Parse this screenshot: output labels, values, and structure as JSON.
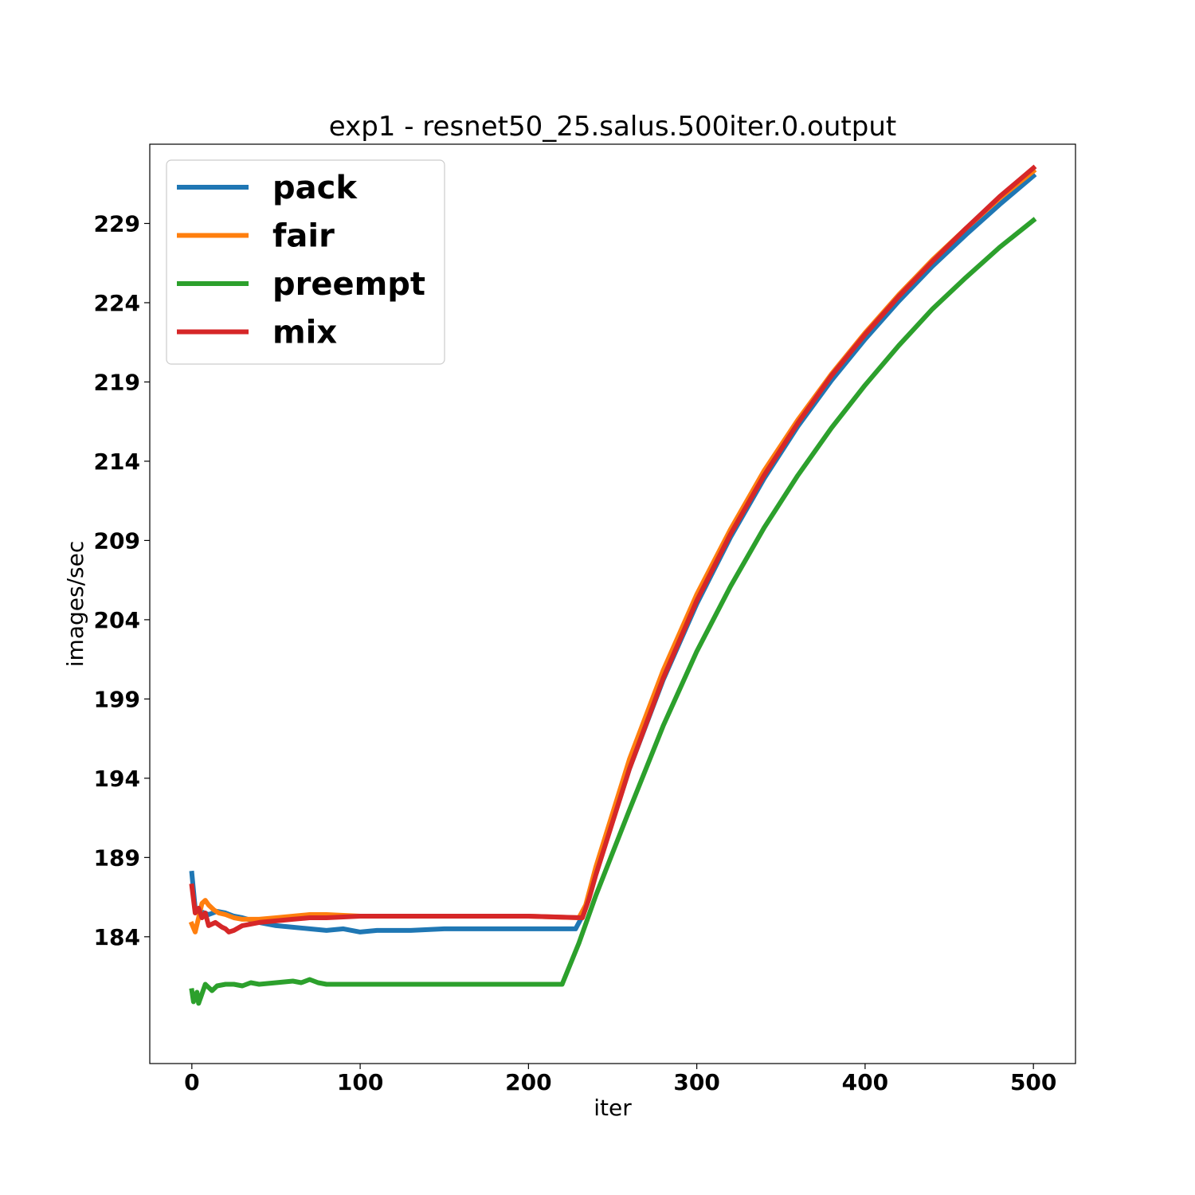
{
  "chart_data": {
    "type": "line",
    "title": "exp1 - resnet50_25.salus.500iter.0.output",
    "xlabel": "iter",
    "ylabel": "images/sec",
    "xlim": [
      -25,
      525
    ],
    "ylim": [
      176,
      234
    ],
    "xticks": [
      0,
      100,
      200,
      300,
      400,
      500
    ],
    "yticks": [
      184,
      189,
      194,
      199,
      204,
      209,
      214,
      219,
      224,
      229
    ],
    "legend_position": "upper left",
    "grid": false,
    "series": [
      {
        "name": "pack",
        "color": "#1f77b4",
        "points": [
          [
            0,
            188.0
          ],
          [
            2,
            185.8
          ],
          [
            5,
            185.6
          ],
          [
            10,
            185.4
          ],
          [
            15,
            185.6
          ],
          [
            20,
            185.5
          ],
          [
            25,
            185.3
          ],
          [
            30,
            185.2
          ],
          [
            40,
            184.9
          ],
          [
            50,
            184.7
          ],
          [
            60,
            184.6
          ],
          [
            70,
            184.5
          ],
          [
            80,
            184.4
          ],
          [
            90,
            184.5
          ],
          [
            100,
            184.3
          ],
          [
            110,
            184.4
          ],
          [
            130,
            184.4
          ],
          [
            150,
            184.5
          ],
          [
            180,
            184.5
          ],
          [
            200,
            184.5
          ],
          [
            228,
            184.5
          ],
          [
            232,
            185.3
          ],
          [
            240,
            188.0
          ],
          [
            260,
            194.6
          ],
          [
            280,
            200.2
          ],
          [
            300,
            205.0
          ],
          [
            320,
            209.2
          ],
          [
            340,
            212.9
          ],
          [
            360,
            216.2
          ],
          [
            380,
            219.1
          ],
          [
            400,
            221.7
          ],
          [
            420,
            224.1
          ],
          [
            440,
            226.3
          ],
          [
            460,
            228.3
          ],
          [
            480,
            230.2
          ],
          [
            500,
            232.0
          ]
        ]
      },
      {
        "name": "fair",
        "color": "#ff7f0e",
        "points": [
          [
            0,
            184.8
          ],
          [
            2,
            184.3
          ],
          [
            4,
            185.2
          ],
          [
            6,
            186.1
          ],
          [
            8,
            186.3
          ],
          [
            10,
            186.0
          ],
          [
            13,
            185.7
          ],
          [
            16,
            185.5
          ],
          [
            20,
            185.4
          ],
          [
            25,
            185.2
          ],
          [
            30,
            185.1
          ],
          [
            40,
            185.1
          ],
          [
            50,
            185.2
          ],
          [
            60,
            185.3
          ],
          [
            70,
            185.4
          ],
          [
            80,
            185.4
          ],
          [
            100,
            185.3
          ],
          [
            130,
            185.3
          ],
          [
            160,
            185.3
          ],
          [
            200,
            185.3
          ],
          [
            230,
            185.2
          ],
          [
            234,
            186.0
          ],
          [
            240,
            188.4
          ],
          [
            260,
            195.2
          ],
          [
            280,
            200.8
          ],
          [
            300,
            205.6
          ],
          [
            320,
            209.7
          ],
          [
            340,
            213.4
          ],
          [
            360,
            216.6
          ],
          [
            380,
            219.5
          ],
          [
            400,
            222.1
          ],
          [
            420,
            224.5
          ],
          [
            440,
            226.7
          ],
          [
            460,
            228.7
          ],
          [
            480,
            230.6
          ],
          [
            500,
            232.3
          ]
        ]
      },
      {
        "name": "preempt",
        "color": "#2ca02c",
        "points": [
          [
            0,
            180.6
          ],
          [
            1,
            179.9
          ],
          [
            3,
            180.5
          ],
          [
            4,
            179.8
          ],
          [
            6,
            180.4
          ],
          [
            8,
            181.0
          ],
          [
            10,
            180.8
          ],
          [
            12,
            180.6
          ],
          [
            15,
            180.9
          ],
          [
            20,
            181.0
          ],
          [
            25,
            181.0
          ],
          [
            30,
            180.9
          ],
          [
            35,
            181.1
          ],
          [
            40,
            181.0
          ],
          [
            50,
            181.1
          ],
          [
            60,
            181.2
          ],
          [
            65,
            181.1
          ],
          [
            70,
            181.3
          ],
          [
            75,
            181.1
          ],
          [
            80,
            181.0
          ],
          [
            90,
            181.0
          ],
          [
            100,
            181.0
          ],
          [
            130,
            181.0
          ],
          [
            160,
            181.0
          ],
          [
            190,
            181.0
          ],
          [
            210,
            181.0
          ],
          [
            220,
            181.0
          ],
          [
            230,
            183.6
          ],
          [
            240,
            186.6
          ],
          [
            260,
            192.0
          ],
          [
            280,
            197.3
          ],
          [
            300,
            202.0
          ],
          [
            320,
            206.1
          ],
          [
            340,
            209.8
          ],
          [
            360,
            213.1
          ],
          [
            380,
            216.1
          ],
          [
            400,
            218.8
          ],
          [
            420,
            221.3
          ],
          [
            440,
            223.6
          ],
          [
            460,
            225.6
          ],
          [
            480,
            227.5
          ],
          [
            500,
            229.2
          ]
        ]
      },
      {
        "name": "mix",
        "color": "#d62728",
        "points": [
          [
            0,
            187.2
          ],
          [
            2,
            185.5
          ],
          [
            4,
            185.8
          ],
          [
            6,
            185.2
          ],
          [
            8,
            185.5
          ],
          [
            10,
            184.7
          ],
          [
            14,
            184.9
          ],
          [
            18,
            184.6
          ],
          [
            20,
            184.5
          ],
          [
            22,
            184.3
          ],
          [
            25,
            184.4
          ],
          [
            30,
            184.7
          ],
          [
            35,
            184.8
          ],
          [
            40,
            184.9
          ],
          [
            50,
            185.0
          ],
          [
            60,
            185.1
          ],
          [
            70,
            185.2
          ],
          [
            80,
            185.2
          ],
          [
            100,
            185.3
          ],
          [
            130,
            185.3
          ],
          [
            160,
            185.3
          ],
          [
            200,
            185.3
          ],
          [
            232,
            185.2
          ],
          [
            236,
            186.4
          ],
          [
            240,
            187.9
          ],
          [
            260,
            194.6
          ],
          [
            280,
            200.3
          ],
          [
            300,
            205.2
          ],
          [
            320,
            209.4
          ],
          [
            340,
            213.1
          ],
          [
            360,
            216.4
          ],
          [
            380,
            219.4
          ],
          [
            400,
            222.0
          ],
          [
            420,
            224.4
          ],
          [
            440,
            226.6
          ],
          [
            460,
            228.7
          ],
          [
            480,
            230.7
          ],
          [
            500,
            232.5
          ]
        ]
      }
    ]
  }
}
